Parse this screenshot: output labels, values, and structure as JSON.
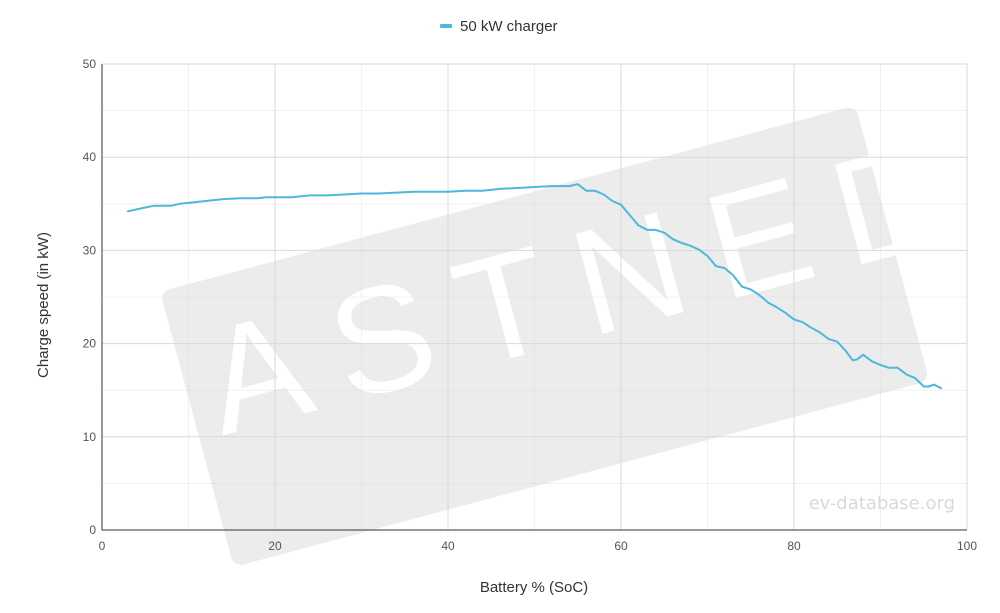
{
  "watermark": {
    "logo_text": "FASTNED",
    "credit": "ev-database.org"
  },
  "colors": {
    "series": "#4db8dc",
    "grid": "#d9d9d9",
    "axis": "#333333"
  },
  "chart_data": {
    "type": "line",
    "title": "",
    "xlabel": "Battery % (SoC)",
    "ylabel": "Charge speed (in kW)",
    "xlim": [
      0,
      100
    ],
    "ylim": [
      0,
      50
    ],
    "xticks": [
      0,
      20,
      40,
      60,
      80,
      100
    ],
    "yticks": [
      0,
      10,
      20,
      30,
      40,
      50
    ],
    "grid": true,
    "legend_position": "top-center",
    "series": [
      {
        "name": "50 kW charger",
        "color": "#4db8dc",
        "points": [
          [
            3,
            34.2
          ],
          [
            4,
            34.4
          ],
          [
            5,
            34.6
          ],
          [
            6,
            34.8
          ],
          [
            7,
            34.8
          ],
          [
            8,
            34.8
          ],
          [
            9,
            35.0
          ],
          [
            10,
            35.1
          ],
          [
            12,
            35.3
          ],
          [
            14,
            35.5
          ],
          [
            16,
            35.6
          ],
          [
            18,
            35.6
          ],
          [
            19,
            35.7
          ],
          [
            20,
            35.7
          ],
          [
            22,
            35.7
          ],
          [
            24,
            35.9
          ],
          [
            26,
            35.9
          ],
          [
            28,
            36.0
          ],
          [
            30,
            36.1
          ],
          [
            32,
            36.1
          ],
          [
            34,
            36.2
          ],
          [
            36,
            36.3
          ],
          [
            40,
            36.3
          ],
          [
            42,
            36.4
          ],
          [
            44,
            36.4
          ],
          [
            46,
            36.6
          ],
          [
            48,
            36.7
          ],
          [
            50,
            36.8
          ],
          [
            52,
            36.9
          ],
          [
            54,
            36.9
          ],
          [
            55,
            37.1
          ],
          [
            56,
            36.4
          ],
          [
            57,
            36.4
          ],
          [
            58,
            36.0
          ],
          [
            59,
            35.3
          ],
          [
            60,
            34.9
          ],
          [
            61,
            33.8
          ],
          [
            62,
            32.7
          ],
          [
            63,
            32.2
          ],
          [
            64,
            32.2
          ],
          [
            65,
            31.9
          ],
          [
            66,
            31.2
          ],
          [
            67,
            30.8
          ],
          [
            68,
            30.5
          ],
          [
            69,
            30.1
          ],
          [
            70,
            29.4
          ],
          [
            71,
            28.3
          ],
          [
            72,
            28.1
          ],
          [
            73,
            27.3
          ],
          [
            74,
            26.1
          ],
          [
            75,
            25.8
          ],
          [
            76,
            25.2
          ],
          [
            77,
            24.4
          ],
          [
            78,
            23.9
          ],
          [
            79,
            23.3
          ],
          [
            80,
            22.6
          ],
          [
            81,
            22.3
          ],
          [
            82,
            21.7
          ],
          [
            83,
            21.2
          ],
          [
            84,
            20.5
          ],
          [
            85,
            20.2
          ],
          [
            86,
            19.2
          ],
          [
            86.8,
            18.2
          ],
          [
            87.3,
            18.3
          ],
          [
            88,
            18.8
          ],
          [
            89,
            18.1
          ],
          [
            90,
            17.7
          ],
          [
            91,
            17.4
          ],
          [
            92,
            17.4
          ],
          [
            93,
            16.7
          ],
          [
            94,
            16.3
          ],
          [
            95,
            15.4
          ],
          [
            95.6,
            15.4
          ],
          [
            96.2,
            15.6
          ],
          [
            97,
            15.2
          ]
        ]
      }
    ]
  }
}
